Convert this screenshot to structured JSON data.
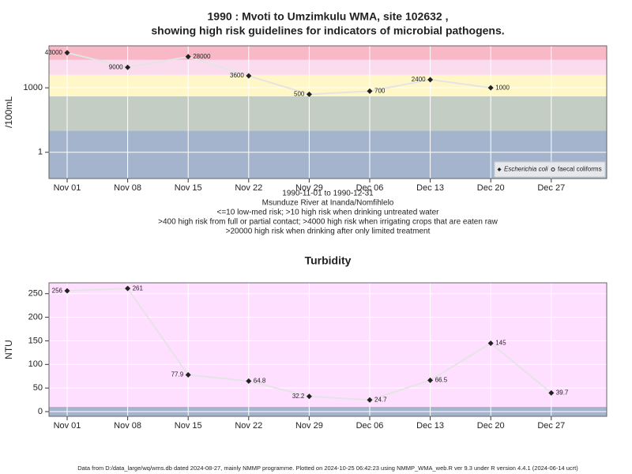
{
  "chart_data": [
    {
      "type": "line",
      "title": [
        "1990 : Mvoti to Umzimkulu WMA, site 102632 ,",
        "showing high risk guidelines for indicators of microbial pathogens."
      ],
      "y_label": "/100mL",
      "log_y": true,
      "ylim": [
        0.06,
        90000
      ],
      "yticks": [
        1,
        1000
      ],
      "grid": true,
      "xticks": [
        "Nov 01",
        "Nov 08",
        "Nov 15",
        "Nov 22",
        "Nov 29",
        "Dec 06",
        "Dec 13",
        "Dec 20",
        "Dec 27"
      ],
      "categories": [
        "Nov 01",
        "Nov 08",
        "Nov 15",
        "Nov 22",
        "Nov 29",
        "Dec 06",
        "Dec 13",
        "Dec 20"
      ],
      "bands": [
        {
          "to": 10,
          "color": "#a3b4cc"
        },
        {
          "from": 10,
          "to": 400,
          "color": "#c4cdc4"
        },
        {
          "from": 400,
          "to": 4000,
          "color": "#fff7c8"
        },
        {
          "from": 4000,
          "to": 20000,
          "color": "#fbdcef"
        },
        {
          "from": 20000,
          "color": "#f8b8c6"
        }
      ],
      "line_color": "#e4e4e4",
      "series": [
        {
          "name": "Escherichia coli",
          "font_style": "italic",
          "color": "#222222",
          "values": [
            43000,
            9000,
            28000,
            3600,
            500,
            700,
            2400,
            1000
          ],
          "value_label_sides": [
            "left",
            "left",
            "right",
            "left",
            "left",
            "right",
            "left",
            "right"
          ]
        },
        {
          "name": "faecal coliforms",
          "color": "#222222",
          "values": [
            null,
            null,
            null,
            null,
            null,
            null,
            null,
            null
          ]
        }
      ],
      "legend": "bottom-right",
      "notes": [
        "1990-11-01 to 1990-12-31",
        "Msunduze River at Inanda/Nomfihlelo",
        "<=10 low-med risk; >10 high risk when drinking untreated water",
        ">400 high risk from full or partial contact; >4000 high risk when irrigating crops that are eaten raw",
        ">20000 high risk when drinking after only limited treatment"
      ]
    },
    {
      "type": "line",
      "title": [
        "Turbidity"
      ],
      "y_label": "NTU",
      "log_y": false,
      "ylim": [
        -10,
        273
      ],
      "yticks": [
        0,
        50,
        100,
        150,
        200,
        250
      ],
      "grid": true,
      "xticks": [
        "Nov 01",
        "Nov 08",
        "Nov 15",
        "Nov 22",
        "Nov 29",
        "Dec 06",
        "Dec 13",
        "Dec 20",
        "Dec 27"
      ],
      "categories": [
        "Nov 01",
        "Nov 08",
        "Nov 15",
        "Nov 22",
        "Nov 29",
        "Dec 06",
        "Dec 13",
        "Dec 20",
        "Dec 27"
      ],
      "bands": [
        {
          "to": 10,
          "color": "#a3b4cc"
        },
        {
          "from": 10,
          "color": "#ffdfff"
        }
      ],
      "line_color": "#e4e4e4",
      "series": [
        {
          "name": "Turbidity",
          "color": "#222222",
          "values": [
            256,
            261,
            77.9,
            64.8,
            32.2,
            24.7,
            66.5,
            145,
            39.7
          ],
          "value_label_sides": [
            "left",
            "right",
            "left",
            "right",
            "left",
            "right",
            "right",
            "right",
            "right"
          ]
        }
      ]
    }
  ],
  "footer": "Data from D:/data_large/wq/wms.db dated 2024-08-27, mainly NMMP programme. Plotted on 2024-10-25 06:42:23 using NMMP_WMA_web.R ver 9.3 under R version 4.4.1 (2024-06-14 ucrt)"
}
